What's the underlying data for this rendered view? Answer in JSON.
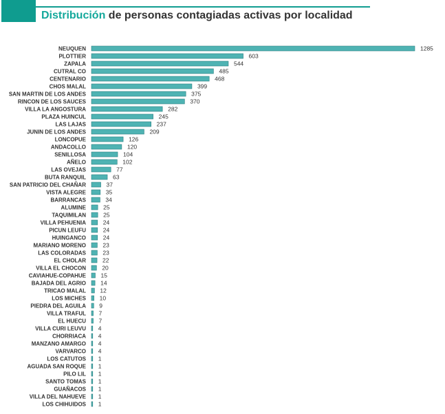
{
  "title": {
    "accent": "Distribución",
    "rest": " de personas contagiadas activas por localidad"
  },
  "colors": {
    "accent": "#0f9c8f",
    "bar": "#4fb3b3",
    "bar_shadow": "#2a7f80",
    "text": "#333333"
  },
  "chart_data": {
    "type": "bar",
    "orientation": "horizontal",
    "title": "Distribución de personas contagiadas activas por localidad",
    "xlabel": "",
    "ylabel": "",
    "grid": false,
    "categories": [
      "NEUQUEN",
      "PLOTTIER",
      "ZAPALA",
      "CUTRAL CO",
      "CENTENARIO",
      "CHOS MALAL",
      "SAN MARTIN DE LOS ANDES",
      "RINCON DE LOS SAUCES",
      "VILLA LA ANGOSTURA",
      "PLAZA HUINCUL",
      "LAS LAJAS",
      "JUNIN DE LOS ANDES",
      "LONCOPUE",
      "ANDACOLLO",
      "SENILLOSA",
      "AÑELO",
      "LAS OVEJAS",
      "BUTA RANQUIL",
      "SAN PATRICIO DEL CHAÑAR",
      "VISTA ALEGRE",
      "BARRANCAS",
      "ALUMINE",
      "TAQUIMILAN",
      "VILLA PEHUENIA",
      "PICUN LEUFU",
      "HUINGANCO",
      "MARIANO MORENO",
      "LAS COLORADAS",
      "EL CHOLAR",
      "VILLA EL CHOCON",
      "CAVIAHUE-COPAHUE",
      "BAJADA DEL AGRIO",
      "TRICAO MALAL",
      "LOS MICHES",
      "PIEDRA DEL AGUILA",
      "VILLA TRAFUL",
      "EL HUECU",
      "VILLA CURI LEUVU",
      "CHORRIACA",
      "MANZANO AMARGO",
      "VARVARCO",
      "LOS CATUTOS",
      "AGUADA SAN ROQUE",
      "PILO LIL",
      "SANTO TOMAS",
      "GUAÑACOS",
      "VILLA DEL NAHUEVE",
      "LOS CHIHUIDOS"
    ],
    "values": [
      1285,
      603,
      544,
      485,
      468,
      399,
      375,
      370,
      282,
      245,
      237,
      209,
      126,
      120,
      104,
      102,
      77,
      63,
      37,
      35,
      34,
      25,
      25,
      24,
      24,
      24,
      23,
      23,
      22,
      20,
      15,
      14,
      12,
      10,
      9,
      7,
      7,
      4,
      4,
      4,
      4,
      1,
      1,
      1,
      1,
      1,
      1,
      1
    ],
    "xlim": [
      0,
      1285
    ]
  }
}
